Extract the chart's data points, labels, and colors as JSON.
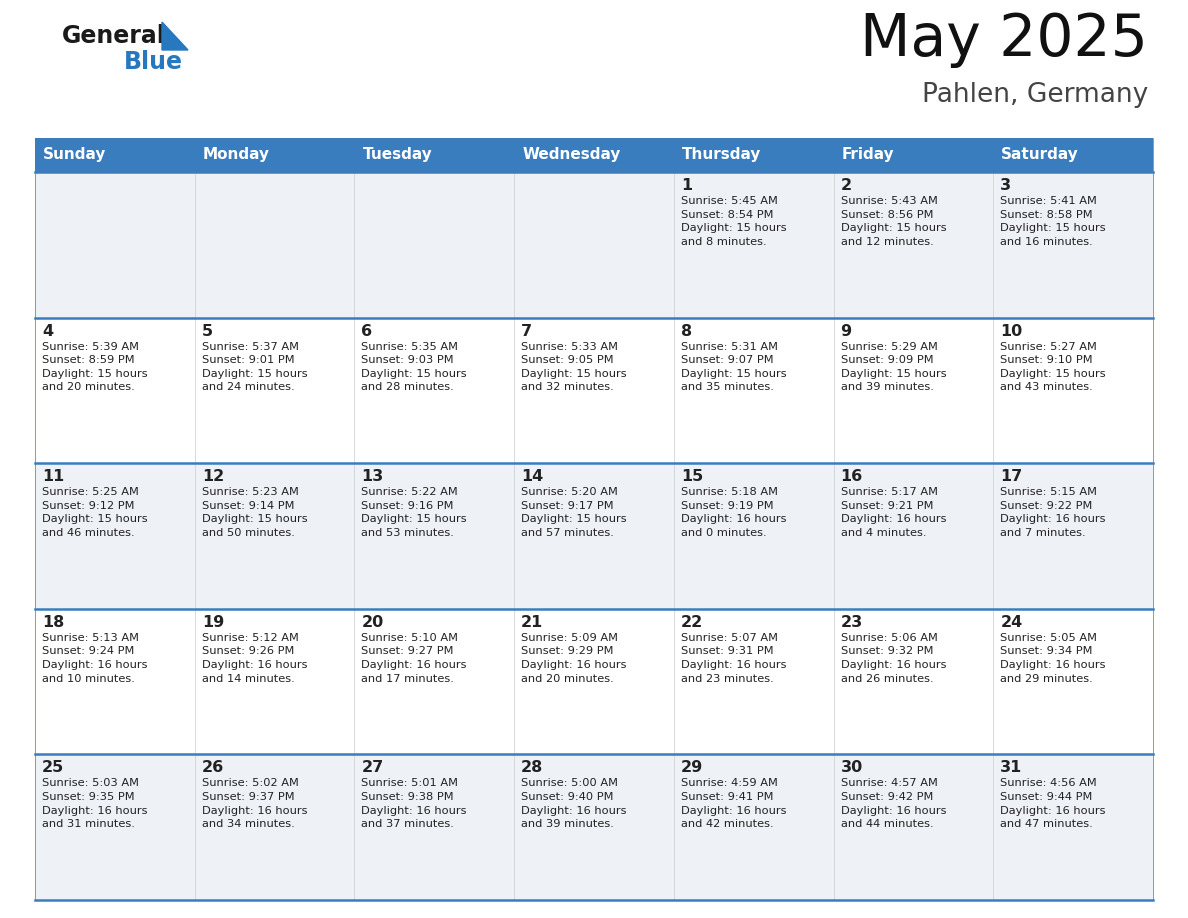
{
  "title": "May 2025",
  "subtitle": "Pahlen, Germany",
  "days_of_week": [
    "Sunday",
    "Monday",
    "Tuesday",
    "Wednesday",
    "Thursday",
    "Friday",
    "Saturday"
  ],
  "header_bg": "#3a7dbf",
  "header_text": "#ffffff",
  "row_bg_odd": "#eef2f7",
  "row_bg_even": "#ffffff",
  "cell_border": "#3a7dbf",
  "day_number_color": "#222222",
  "text_color": "#222222",
  "logo_general_color": "#1a1a1a",
  "logo_blue_color": "#2878c0",
  "calendar_data": [
    [
      {
        "day": "",
        "info": ""
      },
      {
        "day": "",
        "info": ""
      },
      {
        "day": "",
        "info": ""
      },
      {
        "day": "",
        "info": ""
      },
      {
        "day": "1",
        "info": "Sunrise: 5:45 AM\nSunset: 8:54 PM\nDaylight: 15 hours\nand 8 minutes."
      },
      {
        "day": "2",
        "info": "Sunrise: 5:43 AM\nSunset: 8:56 PM\nDaylight: 15 hours\nand 12 minutes."
      },
      {
        "day": "3",
        "info": "Sunrise: 5:41 AM\nSunset: 8:58 PM\nDaylight: 15 hours\nand 16 minutes."
      }
    ],
    [
      {
        "day": "4",
        "info": "Sunrise: 5:39 AM\nSunset: 8:59 PM\nDaylight: 15 hours\nand 20 minutes."
      },
      {
        "day": "5",
        "info": "Sunrise: 5:37 AM\nSunset: 9:01 PM\nDaylight: 15 hours\nand 24 minutes."
      },
      {
        "day": "6",
        "info": "Sunrise: 5:35 AM\nSunset: 9:03 PM\nDaylight: 15 hours\nand 28 minutes."
      },
      {
        "day": "7",
        "info": "Sunrise: 5:33 AM\nSunset: 9:05 PM\nDaylight: 15 hours\nand 32 minutes."
      },
      {
        "day": "8",
        "info": "Sunrise: 5:31 AM\nSunset: 9:07 PM\nDaylight: 15 hours\nand 35 minutes."
      },
      {
        "day": "9",
        "info": "Sunrise: 5:29 AM\nSunset: 9:09 PM\nDaylight: 15 hours\nand 39 minutes."
      },
      {
        "day": "10",
        "info": "Sunrise: 5:27 AM\nSunset: 9:10 PM\nDaylight: 15 hours\nand 43 minutes."
      }
    ],
    [
      {
        "day": "11",
        "info": "Sunrise: 5:25 AM\nSunset: 9:12 PM\nDaylight: 15 hours\nand 46 minutes."
      },
      {
        "day": "12",
        "info": "Sunrise: 5:23 AM\nSunset: 9:14 PM\nDaylight: 15 hours\nand 50 minutes."
      },
      {
        "day": "13",
        "info": "Sunrise: 5:22 AM\nSunset: 9:16 PM\nDaylight: 15 hours\nand 53 minutes."
      },
      {
        "day": "14",
        "info": "Sunrise: 5:20 AM\nSunset: 9:17 PM\nDaylight: 15 hours\nand 57 minutes."
      },
      {
        "day": "15",
        "info": "Sunrise: 5:18 AM\nSunset: 9:19 PM\nDaylight: 16 hours\nand 0 minutes."
      },
      {
        "day": "16",
        "info": "Sunrise: 5:17 AM\nSunset: 9:21 PM\nDaylight: 16 hours\nand 4 minutes."
      },
      {
        "day": "17",
        "info": "Sunrise: 5:15 AM\nSunset: 9:22 PM\nDaylight: 16 hours\nand 7 minutes."
      }
    ],
    [
      {
        "day": "18",
        "info": "Sunrise: 5:13 AM\nSunset: 9:24 PM\nDaylight: 16 hours\nand 10 minutes."
      },
      {
        "day": "19",
        "info": "Sunrise: 5:12 AM\nSunset: 9:26 PM\nDaylight: 16 hours\nand 14 minutes."
      },
      {
        "day": "20",
        "info": "Sunrise: 5:10 AM\nSunset: 9:27 PM\nDaylight: 16 hours\nand 17 minutes."
      },
      {
        "day": "21",
        "info": "Sunrise: 5:09 AM\nSunset: 9:29 PM\nDaylight: 16 hours\nand 20 minutes."
      },
      {
        "day": "22",
        "info": "Sunrise: 5:07 AM\nSunset: 9:31 PM\nDaylight: 16 hours\nand 23 minutes."
      },
      {
        "day": "23",
        "info": "Sunrise: 5:06 AM\nSunset: 9:32 PM\nDaylight: 16 hours\nand 26 minutes."
      },
      {
        "day": "24",
        "info": "Sunrise: 5:05 AM\nSunset: 9:34 PM\nDaylight: 16 hours\nand 29 minutes."
      }
    ],
    [
      {
        "day": "25",
        "info": "Sunrise: 5:03 AM\nSunset: 9:35 PM\nDaylight: 16 hours\nand 31 minutes."
      },
      {
        "day": "26",
        "info": "Sunrise: 5:02 AM\nSunset: 9:37 PM\nDaylight: 16 hours\nand 34 minutes."
      },
      {
        "day": "27",
        "info": "Sunrise: 5:01 AM\nSunset: 9:38 PM\nDaylight: 16 hours\nand 37 minutes."
      },
      {
        "day": "28",
        "info": "Sunrise: 5:00 AM\nSunset: 9:40 PM\nDaylight: 16 hours\nand 39 minutes."
      },
      {
        "day": "29",
        "info": "Sunrise: 4:59 AM\nSunset: 9:41 PM\nDaylight: 16 hours\nand 42 minutes."
      },
      {
        "day": "30",
        "info": "Sunrise: 4:57 AM\nSunset: 9:42 PM\nDaylight: 16 hours\nand 44 minutes."
      },
      {
        "day": "31",
        "info": "Sunrise: 4:56 AM\nSunset: 9:44 PM\nDaylight: 16 hours\nand 47 minutes."
      }
    ]
  ]
}
